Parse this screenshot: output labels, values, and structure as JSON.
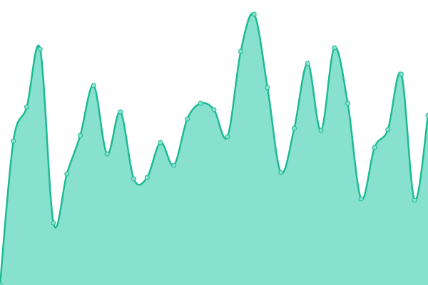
{
  "chart_data": {
    "type": "area",
    "categories": [
      null,
      null,
      null,
      null,
      null,
      null,
      null,
      null,
      null,
      null,
      null,
      null,
      null,
      null,
      null,
      null,
      null,
      null,
      null,
      null,
      null,
      null,
      null,
      null,
      null,
      null,
      null,
      null,
      null,
      null,
      null,
      null,
      null
    ],
    "values": [
      0,
      202,
      250,
      331,
      87,
      156,
      210,
      280,
      184,
      243,
      149,
      151,
      200,
      168,
      233,
      255,
      246,
      208,
      328,
      380,
      277,
      158,
      220,
      311,
      217,
      333,
      255,
      121,
      193,
      218,
      296,
      119,
      238
    ],
    "ylim": [
      0,
      400
    ],
    "color": "#1dba94",
    "fill_color": "#88e0cf",
    "smooth": true,
    "markers": true
  }
}
